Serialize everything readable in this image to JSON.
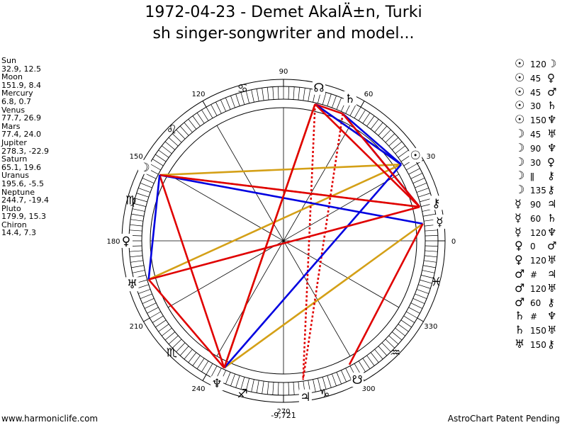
{
  "title_line1": "1972-04-23 - Demet AkalÄ±n, Turki",
  "title_line2": "sh singer-songwriter and model...",
  "planets": [
    {
      "name": "Sun",
      "coords": "32.9, 12.5"
    },
    {
      "name": "Moon",
      "coords": "151.9, 8.4"
    },
    {
      "name": "Mercury",
      "coords": "6.8, 0.7"
    },
    {
      "name": "Venus",
      "coords": "77.7, 26.9"
    },
    {
      "name": "Mars",
      "coords": "77.4, 24.0"
    },
    {
      "name": "Jupiter",
      "coords": "278.3, -22.9"
    },
    {
      "name": "Saturn",
      "coords": "65.1, 19.6"
    },
    {
      "name": "Uranus",
      "coords": "195.6, -5.5"
    },
    {
      "name": "Neptune",
      "coords": "244.7, -19.4"
    },
    {
      "name": "Pluto",
      "coords": "179.9, 15.3"
    },
    {
      "name": "Chiron",
      "coords": "14.4, 7.3"
    }
  ],
  "aspects": [
    {
      "p1": "☉",
      "angle": "120",
      "p2": "☽"
    },
    {
      "p1": "☉",
      "angle": "45",
      "p2": "♀"
    },
    {
      "p1": "☉",
      "angle": "45",
      "p2": "♂"
    },
    {
      "p1": "☉",
      "angle": "30",
      "p2": "♄"
    },
    {
      "p1": "☉",
      "angle": "150",
      "p2": "♆"
    },
    {
      "p1": "☽",
      "angle": "45",
      "p2": "♅"
    },
    {
      "p1": "☽",
      "angle": "90",
      "p2": "♆"
    },
    {
      "p1": "☽",
      "angle": "30",
      "p2": "♀"
    },
    {
      "p1": "☽",
      "angle": "ǁ",
      "p2": "⚷"
    },
    {
      "p1": "☽",
      "angle": "135",
      "p2": "⚷"
    },
    {
      "p1": "☿",
      "angle": "90",
      "p2": "♃"
    },
    {
      "p1": "☿",
      "angle": "60",
      "p2": "♄"
    },
    {
      "p1": "☿",
      "angle": "120",
      "p2": "♆"
    },
    {
      "p1": "♀",
      "angle": "0",
      "p2": "♂"
    },
    {
      "p1": "♀",
      "angle": "120",
      "p2": "♅"
    },
    {
      "p1": "♂",
      "angle": "#",
      "p2": "♃"
    },
    {
      "p1": "♂",
      "angle": "120",
      "p2": "♅"
    },
    {
      "p1": "♂",
      "angle": "60",
      "p2": "⚷"
    },
    {
      "p1": "♄",
      "angle": "#",
      "p2": "♆"
    },
    {
      "p1": "♄",
      "angle": "150",
      "p2": "♅"
    },
    {
      "p1": "♅",
      "angle": "150",
      "p2": "⚷"
    }
  ],
  "wheel": {
    "degree_labels": [
      {
        "text": "90",
        "deg": 90
      },
      {
        "text": "60",
        "deg": 60
      },
      {
        "text": "30",
        "deg": 30
      },
      {
        "text": "0",
        "deg": 0
      },
      {
        "text": "330",
        "deg": 330
      },
      {
        "text": "300",
        "deg": 300
      },
      {
        "text": "270",
        "deg": 270
      },
      {
        "text": "240",
        "deg": 240
      },
      {
        "text": "210",
        "deg": 210
      },
      {
        "text": "180",
        "deg": 180
      },
      {
        "text": "150",
        "deg": 150
      },
      {
        "text": "120",
        "deg": 120
      }
    ],
    "bottom_value": "-9,721",
    "zodiac": [
      {
        "sym": "♓",
        "deg": 345
      },
      {
        "sym": "♒",
        "deg": 315
      },
      {
        "sym": "♑",
        "deg": 285
      },
      {
        "sym": "♐",
        "deg": 255
      },
      {
        "sym": "♏",
        "deg": 225
      },
      {
        "sym": "♎",
        "deg": 195
      },
      {
        "sym": "♍",
        "deg": 165
      },
      {
        "sym": "♌",
        "deg": 135
      },
      {
        "sym": "♋",
        "deg": 105
      }
    ],
    "planet_glyphs": [
      {
        "sym": "☊",
        "deg": 77,
        "color": "#000000"
      },
      {
        "sym": "♄",
        "deg": 65,
        "color": "#000000"
      },
      {
        "sym": "☉",
        "deg": 33,
        "color": "#000000"
      },
      {
        "sym": "⚷",
        "deg": 14,
        "color": "#000000"
      },
      {
        "sym": "☿",
        "deg": 7,
        "color": "#000000"
      },
      {
        "sym": "☽",
        "deg": 152,
        "color": "#000000"
      },
      {
        "sym": "♀",
        "deg": 180,
        "color": "#000000"
      },
      {
        "sym": "♅",
        "deg": 196,
        "color": "#000000"
      },
      {
        "sym": "♆",
        "deg": 245,
        "color": "#000000"
      },
      {
        "sym": "♃",
        "deg": 278,
        "color": "#000000"
      },
      {
        "sym": "☋",
        "deg": 298,
        "color": "#000000"
      }
    ]
  },
  "footer_left": "www.harmoniclife.com",
  "footer_right": "AstroChart Patent Pending"
}
